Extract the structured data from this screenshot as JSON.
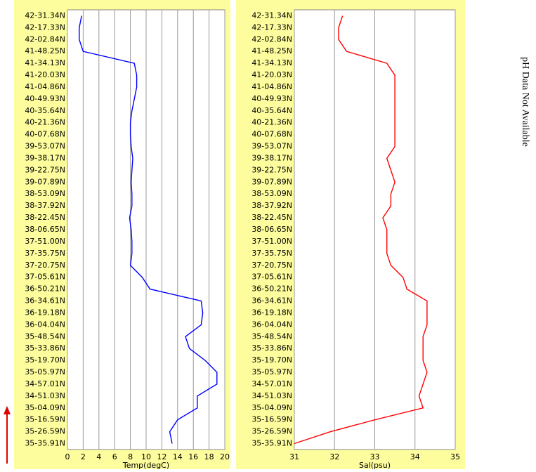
{
  "chart_data": [
    {
      "type": "line",
      "x_label": "Temp(degC)",
      "color": "#0000ff",
      "grid": true,
      "xlim": [
        0,
        20
      ],
      "xticks": [
        0,
        2,
        4,
        6,
        8,
        10,
        12,
        14,
        16,
        18,
        20
      ],
      "categories": [
        "42-31.34N",
        "42-17.33N",
        "42-02.84N",
        "41-48.25N",
        "41-34.13N",
        "41-20.03N",
        "41-04.86N",
        "40-49.93N",
        "40-35.64N",
        "40-21.36N",
        "40-07.68N",
        "39-53.07N",
        "39-38.17N",
        "39-22.75N",
        "39-07.89N",
        "38-53.09N",
        "38-37.92N",
        "38-22.45N",
        "38-06.65N",
        "37-51.00N",
        "37-35.75N",
        "37-20.75N",
        "37-05.61N",
        "36-50.21N",
        "36-34.61N",
        "36-19.18N",
        "36-04.04N",
        "35-48.54N",
        "35-33.86N",
        "35-19.70N",
        "35-05.97N",
        "34-57.01N",
        "34-51.03N",
        "35-04.09N",
        "35-16.59N",
        "35-26.59N",
        "35-35.91N"
      ],
      "values": [
        1.8,
        1.5,
        1.5,
        2.0,
        8.5,
        8.8,
        8.8,
        8.5,
        8.2,
        8.0,
        8.0,
        8.1,
        8.3,
        8.2,
        8.1,
        8.2,
        8.2,
        7.9,
        8.1,
        8.2,
        8.2,
        8.0,
        9.5,
        10.5,
        17.0,
        17.2,
        17.0,
        15.0,
        15.5,
        17.5,
        19.0,
        19.0,
        16.5,
        16.5,
        14.0,
        13.0,
        13.3
      ]
    },
    {
      "type": "line",
      "x_label": "Sal(psu)",
      "color": "#ff0000",
      "grid": true,
      "xlim": [
        31,
        35
      ],
      "xticks": [
        31,
        32,
        33,
        34,
        35
      ],
      "categories": [
        "42-31.34N",
        "42-17.33N",
        "42-02.84N",
        "41-48.25N",
        "41-34.13N",
        "41-20.03N",
        "41-04.86N",
        "40-49.93N",
        "40-35.64N",
        "40-21.36N",
        "40-07.68N",
        "39-53.07N",
        "39-38.17N",
        "39-22.75N",
        "39-07.89N",
        "38-53.09N",
        "38-37.92N",
        "38-22.45N",
        "38-06.65N",
        "37-51.00N",
        "37-35.75N",
        "37-20.75N",
        "37-05.61N",
        "36-50.21N",
        "36-34.61N",
        "36-19.18N",
        "36-04.04N",
        "35-48.54N",
        "35-33.86N",
        "35-19.70N",
        "35-05.97N",
        "34-57.01N",
        "34-51.03N",
        "35-04.09N",
        "35-16.59N",
        "35-26.59N",
        "35-35.91N"
      ],
      "values": [
        32.2,
        32.1,
        32.1,
        32.3,
        33.3,
        33.5,
        33.5,
        33.5,
        33.5,
        33.5,
        33.5,
        33.5,
        33.3,
        33.4,
        33.5,
        33.4,
        33.4,
        33.2,
        33.3,
        33.3,
        33.3,
        33.4,
        33.7,
        33.8,
        34.3,
        34.3,
        34.3,
        34.2,
        34.2,
        34.2,
        34.3,
        34.2,
        34.1,
        34.2,
        33.0,
        31.9,
        31.0
      ]
    }
  ],
  "annotation": "pH Data Not Available"
}
